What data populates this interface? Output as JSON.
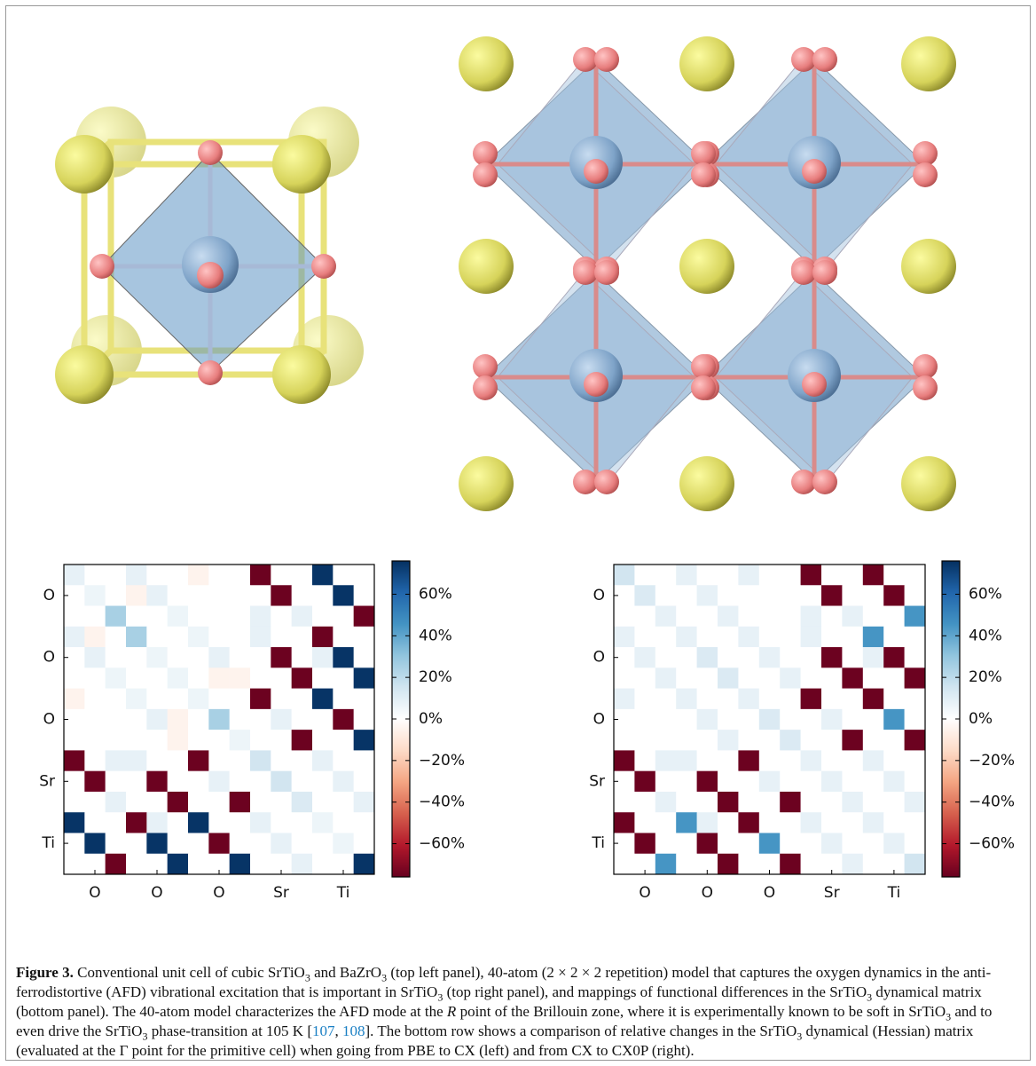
{
  "chart_data": [
    {
      "type": "heatmap",
      "xcategories": [
        null,
        "O",
        null,
        null,
        "O",
        null,
        null,
        "O",
        null,
        null,
        "Sr",
        null,
        null,
        "Ti",
        null
      ],
      "ycategories": [
        null,
        "O",
        null,
        null,
        "O",
        null,
        null,
        "O",
        null,
        null,
        "Sr",
        null,
        null,
        "Ti",
        null
      ],
      "values": [
        [
          8,
          0,
          0,
          8,
          0,
          0,
          -5,
          0,
          0,
          -75,
          0,
          0,
          75,
          0,
          0
        ],
        [
          0,
          6,
          0,
          -5,
          8,
          0,
          0,
          0,
          0,
          0,
          -75,
          0,
          0,
          75,
          0
        ],
        [
          0,
          0,
          25,
          0,
          0,
          6,
          0,
          0,
          0,
          8,
          0,
          8,
          0,
          0,
          -75
        ],
        [
          8,
          -5,
          0,
          25,
          0,
          0,
          6,
          0,
          0,
          8,
          0,
          0,
          -75,
          0,
          0
        ],
        [
          0,
          8,
          0,
          0,
          6,
          0,
          0,
          8,
          0,
          0,
          -75,
          0,
          8,
          75,
          0
        ],
        [
          0,
          0,
          6,
          0,
          0,
          6,
          0,
          -5,
          -5,
          0,
          0,
          -75,
          0,
          0,
          75
        ],
        [
          -5,
          0,
          0,
          6,
          0,
          0,
          6,
          0,
          0,
          -75,
          0,
          0,
          75,
          0,
          0
        ],
        [
          0,
          0,
          0,
          0,
          8,
          -5,
          0,
          25,
          0,
          0,
          8,
          0,
          0,
          -75,
          0
        ],
        [
          0,
          0,
          0,
          0,
          0,
          -5,
          0,
          0,
          6,
          0,
          0,
          -75,
          0,
          0,
          75
        ],
        [
          -75,
          0,
          8,
          8,
          0,
          0,
          -75,
          0,
          0,
          15,
          0,
          0,
          8,
          0,
          0
        ],
        [
          0,
          -75,
          0,
          0,
          -75,
          0,
          0,
          8,
          0,
          0,
          15,
          0,
          0,
          8,
          0
        ],
        [
          0,
          0,
          8,
          0,
          0,
          -75,
          0,
          0,
          -75,
          0,
          0,
          12,
          0,
          0,
          8
        ],
        [
          75,
          0,
          0,
          -75,
          8,
          0,
          75,
          0,
          0,
          8,
          0,
          0,
          6,
          0,
          0
        ],
        [
          0,
          75,
          0,
          0,
          75,
          0,
          0,
          -75,
          0,
          0,
          8,
          0,
          0,
          6,
          0
        ],
        [
          0,
          0,
          -75,
          0,
          0,
          75,
          0,
          0,
          75,
          0,
          0,
          8,
          0,
          0,
          75
        ]
      ],
      "clim": [
        -76,
        76
      ],
      "cticks": [
        {
          "value": 60,
          "label": "60%"
        },
        {
          "value": 40,
          "label": "40%"
        },
        {
          "value": 20,
          "label": "20%"
        },
        {
          "value": 0,
          "label": "0%"
        },
        {
          "value": -20,
          "label": "−20%"
        },
        {
          "value": -40,
          "label": "−40%"
        },
        {
          "value": -60,
          "label": "−60%"
        }
      ],
      "colormap": [
        "#67001f",
        "#b2182b",
        "#d6604d",
        "#f4a582",
        "#fddbc7",
        "#ffffff",
        "#d1e5f0",
        "#92c5de",
        "#4393c3",
        "#2166ac",
        "#053061"
      ]
    },
    {
      "type": "heatmap",
      "xcategories": [
        null,
        "O",
        null,
        null,
        "O",
        null,
        null,
        "O",
        null,
        null,
        "Sr",
        null,
        null,
        "Ti",
        null
      ],
      "ycategories": [
        null,
        "O",
        null,
        null,
        "O",
        null,
        null,
        "O",
        null,
        null,
        "Sr",
        null,
        null,
        "Ti",
        null
      ],
      "values": [
        [
          15,
          0,
          0,
          8,
          0,
          0,
          8,
          0,
          0,
          -75,
          0,
          0,
          -75,
          0,
          0
        ],
        [
          0,
          12,
          0,
          0,
          8,
          0,
          0,
          0,
          0,
          0,
          -75,
          0,
          0,
          -75,
          0
        ],
        [
          0,
          0,
          8,
          0,
          0,
          8,
          0,
          0,
          0,
          8,
          0,
          8,
          0,
          0,
          45
        ],
        [
          8,
          0,
          0,
          8,
          0,
          0,
          8,
          0,
          0,
          8,
          0,
          0,
          45,
          0,
          0
        ],
        [
          0,
          8,
          0,
          0,
          12,
          0,
          0,
          8,
          0,
          0,
          -75,
          0,
          8,
          -75,
          0
        ],
        [
          0,
          0,
          8,
          0,
          0,
          12,
          0,
          0,
          8,
          0,
          0,
          -75,
          0,
          0,
          -75
        ],
        [
          8,
          0,
          0,
          8,
          0,
          0,
          8,
          0,
          0,
          -75,
          0,
          0,
          -75,
          0,
          0
        ],
        [
          0,
          0,
          0,
          0,
          8,
          0,
          0,
          12,
          0,
          0,
          8,
          0,
          0,
          45,
          0
        ],
        [
          0,
          0,
          0,
          0,
          0,
          8,
          0,
          0,
          12,
          0,
          0,
          -75,
          0,
          0,
          -75
        ],
        [
          -75,
          0,
          8,
          8,
          0,
          0,
          -75,
          0,
          0,
          8,
          0,
          0,
          8,
          0,
          0
        ],
        [
          0,
          -75,
          0,
          0,
          -75,
          0,
          0,
          8,
          0,
          0,
          8,
          0,
          0,
          8,
          0
        ],
        [
          0,
          0,
          8,
          0,
          0,
          -75,
          0,
          0,
          -75,
          0,
          0,
          8,
          0,
          0,
          8
        ],
        [
          -75,
          0,
          0,
          45,
          8,
          0,
          -75,
          0,
          0,
          8,
          0,
          0,
          8,
          0,
          0
        ],
        [
          0,
          -75,
          0,
          0,
          -75,
          0,
          0,
          45,
          0,
          0,
          8,
          0,
          0,
          8,
          0
        ],
        [
          0,
          0,
          45,
          0,
          0,
          -75,
          0,
          0,
          -75,
          0,
          0,
          8,
          0,
          0,
          15
        ]
      ],
      "clim": [
        -76,
        76
      ],
      "cticks": [
        {
          "value": 60,
          "label": "60%"
        },
        {
          "value": 40,
          "label": "40%"
        },
        {
          "value": 20,
          "label": "20%"
        },
        {
          "value": 0,
          "label": "0%"
        },
        {
          "value": -20,
          "label": "−20%"
        },
        {
          "value": -40,
          "label": "−40%"
        },
        {
          "value": -60,
          "label": "−60%"
        }
      ],
      "colormap": [
        "#67001f",
        "#b2182b",
        "#d6604d",
        "#f4a582",
        "#fddbc7",
        "#ffffff",
        "#d1e5f0",
        "#92c5de",
        "#4393c3",
        "#2166ac",
        "#053061"
      ]
    }
  ],
  "caption": {
    "parts": [
      "Figure 3.",
      "  Conventional unit cell of cubic SrTiO",
      "3",
      " and BaZrO",
      "3",
      " (top left panel), 40-atom (2 × 2 × 2 repetition) model that captures the oxygen dynamics in the anti-ferrodistortive (AFD) vibrational excitation that is important in SrTiO",
      "3",
      " (top right panel), and mappings of functional differences in the SrTiO",
      "3",
      " dynamical matrix (bottom panel). The 40-atom model characterizes the AFD mode at the ",
      "R",
      " point of the Brillouin zone, where it is experimentally known to be soft in SrTiO",
      "3",
      " and to even drive the SrTiO",
      "3",
      " phase-transition at 105 K [",
      "107",
      ", ",
      "108",
      "]. The bottom row shows a comparison of relative changes in the SrTiO",
      "3",
      " dynamical (Hessian) matrix (evaluated at the Γ point for the primitive cell) when going from PBE to CX (left) and from CX to CX0P (right)."
    ]
  }
}
